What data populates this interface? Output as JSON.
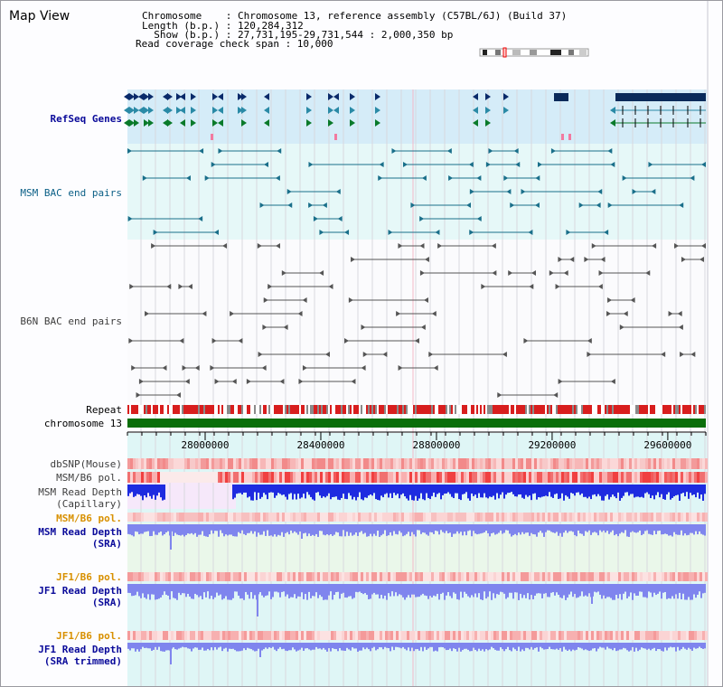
{
  "app_title": "Map View",
  "header": {
    "chromosome_line": "Chromosome    : Chromosome 13, reference assembly (C57BL/6J) (Build 37)",
    "length_line": "Length (b.p.) : 120,284,312",
    "show_line": "  Show (b.p.) : 27,731,195-29,731,544 : 2,000,350 bp",
    "coverage_line": "Read coverage check span : 10,000"
  },
  "tracks": {
    "refseq": "RefSeq Genes",
    "msm_bac": "MSM BAC end pairs",
    "b6n_bac": "B6N BAC end pairs",
    "repeat": "Repeat",
    "chromosome": "chromosome 13",
    "dbsnp": "dbSNP(Mouse)",
    "msm_b6_pol_1": "MSM/B6 pol.",
    "msm_read_depth_cap_1": "MSM Read Depth",
    "msm_read_depth_cap_2": "(Capillary)",
    "msm_b6_pol_2": "MSM/B6 pol.",
    "msm_read_depth_sra_1": "MSM Read Depth",
    "msm_read_depth_sra_2": "(SRA)",
    "jf1_pol_1": "JF1/B6 pol.",
    "jf1_read_depth_sra_1": "JF1 Read Depth",
    "jf1_read_depth_sra_2": "(SRA)",
    "jf1_pol_2": "JF1/B6 pol.",
    "jf1_read_depth_trim_1": "JF1 Read Depth",
    "jf1_read_depth_trim_2": "(SRA trimmed)"
  },
  "axis": {
    "start_bp": 27731195,
    "end_bp": 29731544,
    "ticks": [
      {
        "label": "28000000",
        "value": 28000000
      },
      {
        "label": "28400000",
        "value": 28400000
      },
      {
        "label": "28800000",
        "value": 28800000
      },
      {
        "label": "29200000",
        "value": 29200000
      },
      {
        "label": "29600000",
        "value": 29600000
      }
    ]
  },
  "colors": {
    "refseq_bg": "#d5ecf8",
    "msm_bg": "#e6f8f8",
    "b6n_bg": "#fbfbfd",
    "chromosome_bar": "#0a6e0a",
    "depth_blue": "#1e2be0",
    "depth_sra": "#7f85ee",
    "pol_red": "#f03a3a"
  }
}
